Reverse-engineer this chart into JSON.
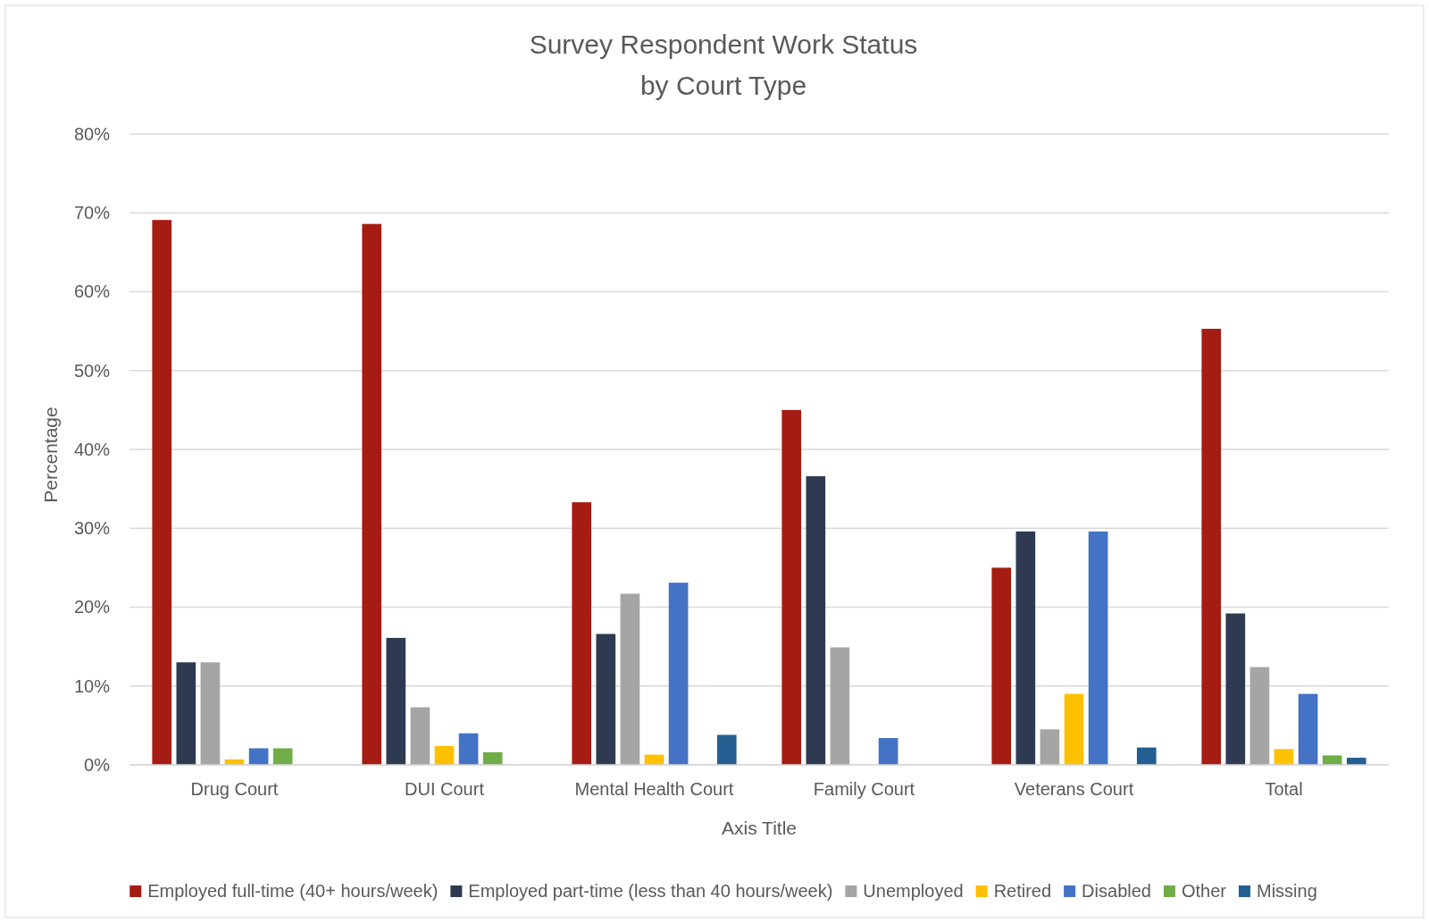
{
  "chart_data": {
    "type": "bar",
    "title": "Survey Respondent Work Status\nby Court Type",
    "xlabel": "Axis Title",
    "ylabel": "Percentage",
    "categories": [
      "Drug Court",
      "DUI Court",
      "Mental Health Court",
      "Family Court",
      "Veterans Court",
      "Total"
    ],
    "series": [
      {
        "name": "Employed full-time (40+ hours/week)",
        "color": "#a51c13",
        "values": [
          69.1,
          68.6,
          33.3,
          45.0,
          25.0,
          55.3
        ]
      },
      {
        "name": "Employed part-time (less than 40 hours/week)",
        "color": "#2e3a52",
        "values": [
          13.0,
          16.1,
          16.6,
          36.6,
          29.6,
          19.2
        ]
      },
      {
        "name": "Unemployed",
        "color": "#a5a5a5",
        "values": [
          13.0,
          7.3,
          21.7,
          14.9,
          4.5,
          12.4
        ]
      },
      {
        "name": "Retired",
        "color": "#ffc000",
        "values": [
          0.7,
          2.4,
          1.3,
          null,
          9.0,
          2.0
        ]
      },
      {
        "name": "Disabled",
        "color": "#4472c4",
        "values": [
          2.1,
          4.0,
          23.1,
          3.4,
          29.6,
          9.0
        ]
      },
      {
        "name": "Other",
        "color": "#70ad47",
        "values": [
          2.1,
          1.6,
          null,
          null,
          null,
          1.2
        ]
      },
      {
        "name": "Missing",
        "color": "#255e91",
        "values": [
          null,
          null,
          3.8,
          null,
          2.2,
          0.9
        ]
      }
    ],
    "ylim": [
      0,
      80
    ],
    "yticks": [
      {
        "value": 0,
        "label": "0%"
      },
      {
        "value": 10,
        "label": "10%"
      },
      {
        "value": 20,
        "label": "20%"
      },
      {
        "value": 30,
        "label": "30%"
      },
      {
        "value": 40,
        "label": "40%"
      },
      {
        "value": 50,
        "label": "50%"
      },
      {
        "value": 60,
        "label": "60%"
      },
      {
        "value": 70,
        "label": "70%"
      },
      {
        "value": 80,
        "label": "80%"
      }
    ],
    "grid": "y",
    "legend": "bottom"
  }
}
